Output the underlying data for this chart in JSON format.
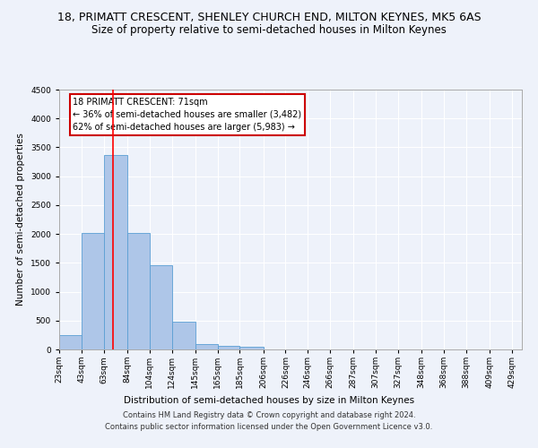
{
  "title": "18, PRIMATT CRESCENT, SHENLEY CHURCH END, MILTON KEYNES, MK5 6AS",
  "subtitle": "Size of property relative to semi-detached houses in Milton Keynes",
  "xlabel": "Distribution of semi-detached houses by size in Milton Keynes",
  "ylabel": "Number of semi-detached properties",
  "footer_line1": "Contains HM Land Registry data © Crown copyright and database right 2024.",
  "footer_line2": "Contains public sector information licensed under the Open Government Licence v3.0.",
  "annotation_title": "18 PRIMATT CRESCENT: 71sqm",
  "annotation_line1": "← 36% of semi-detached houses are smaller (3,482)",
  "annotation_line2": "62% of semi-detached houses are larger (5,983) →",
  "property_size": 71,
  "bar_left_edges": [
    23,
    43,
    63,
    84,
    104,
    124,
    145,
    165,
    185,
    206,
    226,
    246,
    266,
    287,
    307,
    327,
    348,
    368,
    388,
    409
  ],
  "bar_widths": [
    20,
    20,
    21,
    20,
    20,
    21,
    20,
    20,
    21,
    20,
    20,
    20,
    21,
    20,
    20,
    21,
    20,
    20,
    21,
    20
  ],
  "bar_heights": [
    255,
    2025,
    3375,
    2010,
    1460,
    480,
    100,
    55,
    50,
    0,
    0,
    0,
    0,
    0,
    0,
    0,
    0,
    0,
    0,
    0
  ],
  "bar_color": "#aec6e8",
  "bar_edge_color": "#5a9fd4",
  "red_line_x": 71,
  "ylim": [
    0,
    4500
  ],
  "yticks": [
    0,
    500,
    1000,
    1500,
    2000,
    2500,
    3000,
    3500,
    4000,
    4500
  ],
  "x_tick_labels": [
    "23sqm",
    "43sqm",
    "63sqm",
    "84sqm",
    "104sqm",
    "124sqm",
    "145sqm",
    "165sqm",
    "185sqm",
    "206sqm",
    "226sqm",
    "246sqm",
    "266sqm",
    "287sqm",
    "307sqm",
    "327sqm",
    "348sqm",
    "368sqm",
    "388sqm",
    "409sqm",
    "429sqm"
  ],
  "background_color": "#eef2fa",
  "grid_color": "#ffffff",
  "annotation_box_color": "#ffffff",
  "annotation_box_edge_color": "#cc0000",
  "title_fontsize": 9,
  "subtitle_fontsize": 8.5,
  "axis_label_fontsize": 7.5,
  "tick_fontsize": 6.5,
  "annotation_fontsize": 7,
  "footer_fontsize": 6
}
